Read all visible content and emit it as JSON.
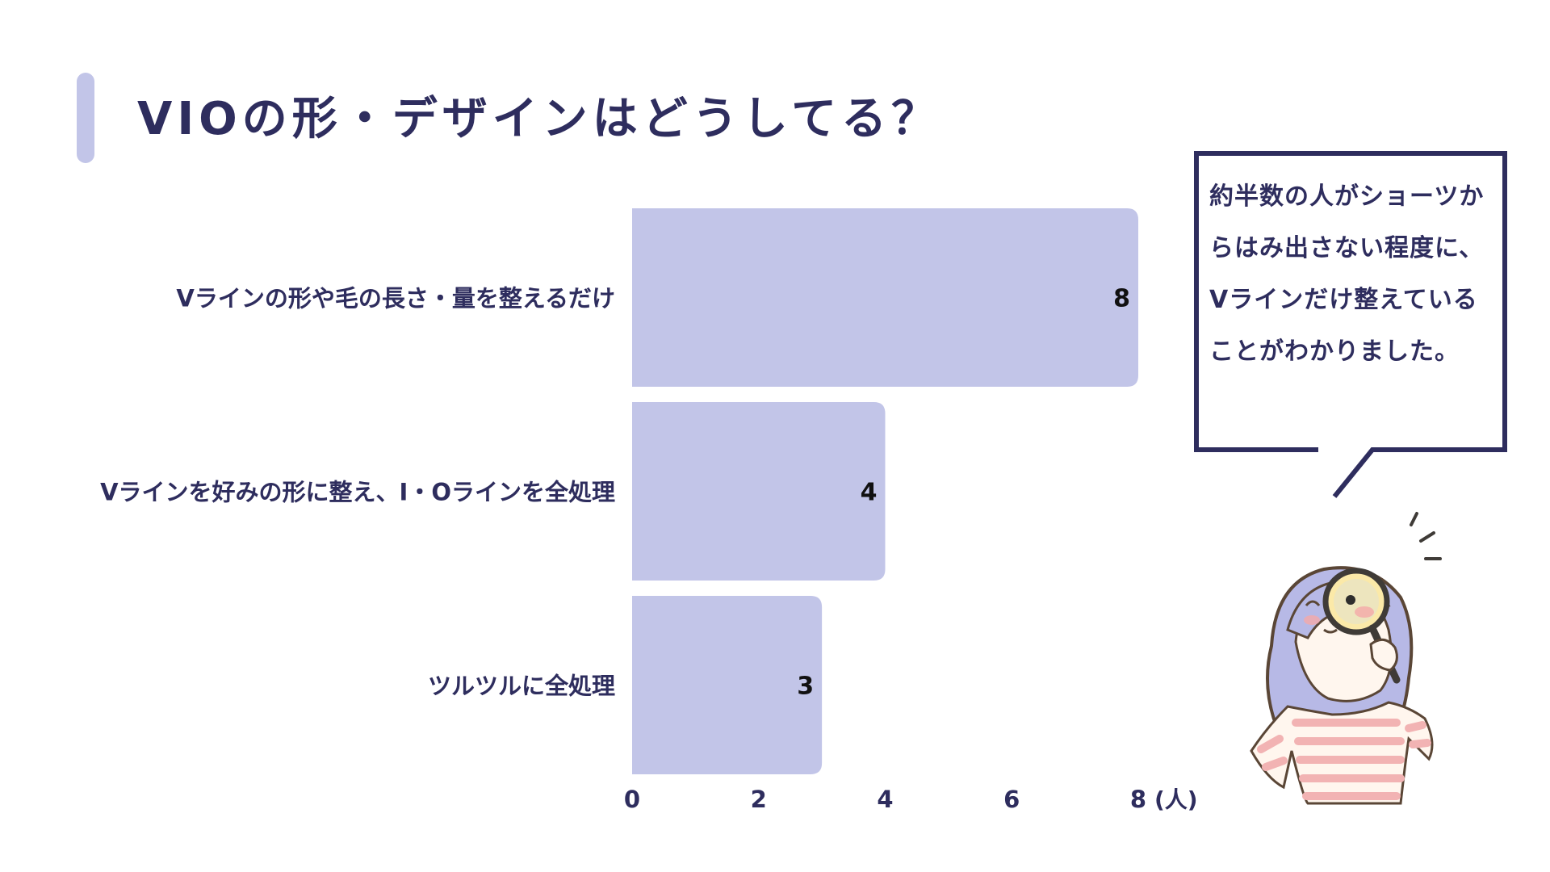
{
  "title": "VIOの形・デザインはどうしてる？",
  "bubble_text": "約半数の人がショーツからはみ出さない程度に、Vラインだけ整えていることがわかりました。",
  "colors": {
    "bar": "#c2c5e8",
    "text": "#2e2d5e",
    "value_text": "#111111",
    "accent": "#c2c5e8"
  },
  "chart_data": {
    "type": "bar",
    "orientation": "horizontal",
    "categories": [
      "Vラインの形や毛の長さ・量を整えるだけ",
      "Vラインを好みの形に整え、I・Oラインを全処理",
      "ツルツルに全処理"
    ],
    "values": [
      8,
      4,
      3
    ],
    "xlim": [
      0,
      8
    ],
    "xticks": [
      0,
      2,
      4,
      6,
      8
    ],
    "xunit": "(人)",
    "grid": false,
    "legend": false
  }
}
